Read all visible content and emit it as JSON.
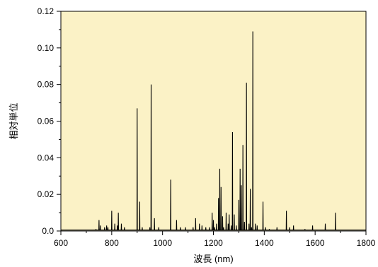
{
  "chart_data": {
    "type": "line",
    "title": "",
    "xlabel": "波長 (nm)",
    "ylabel": "相対単位",
    "xlim": [
      600,
      1800
    ],
    "ylim": [
      0,
      0.12
    ],
    "xticks": [
      "600",
      "800",
      "1000",
      "1200",
      "1400",
      "1600",
      "1800"
    ],
    "yticks": [
      "0.0",
      "0.02",
      "0.04",
      "0.06",
      "0.08",
      "0.10",
      "0.12"
    ],
    "grid": false,
    "legend": "none",
    "plot_background": "#fbf2c6",
    "line_color": "#000000",
    "baseline": 0.0005,
    "series": [
      {
        "peaks": [
          [
            738,
            0.001
          ],
          [
            750,
            0.006
          ],
          [
            755,
            0.003
          ],
          [
            772,
            0.002
          ],
          [
            780,
            0.003
          ],
          [
            785,
            0.002
          ],
          [
            800,
            0.011
          ],
          [
            812,
            0.004
          ],
          [
            822,
            0.003
          ],
          [
            826,
            0.01
          ],
          [
            838,
            0.004
          ],
          [
            850,
            0.002
          ],
          [
            900,
            0.067
          ],
          [
            910,
            0.016
          ],
          [
            920,
            0.002
          ],
          [
            950,
            0.002
          ],
          [
            955,
            0.08
          ],
          [
            968,
            0.007
          ],
          [
            985,
            0.002
          ],
          [
            1032,
            0.028
          ],
          [
            1055,
            0.006
          ],
          [
            1070,
            0.002
          ],
          [
            1090,
            0.002
          ],
          [
            1120,
            0.002
          ],
          [
            1130,
            0.007
          ],
          [
            1145,
            0.004
          ],
          [
            1155,
            0.003
          ],
          [
            1170,
            0.002
          ],
          [
            1185,
            0.002
          ],
          [
            1195,
            0.01
          ],
          [
            1200,
            0.006
          ],
          [
            1205,
            0.002
          ],
          [
            1212,
            0.004
          ],
          [
            1220,
            0.018
          ],
          [
            1225,
            0.034
          ],
          [
            1230,
            0.024
          ],
          [
            1236,
            0.008
          ],
          [
            1240,
            0.002
          ],
          [
            1250,
            0.01
          ],
          [
            1258,
            0.004
          ],
          [
            1262,
            0.009
          ],
          [
            1270,
            0.003
          ],
          [
            1275,
            0.054
          ],
          [
            1282,
            0.009
          ],
          [
            1290,
            0.003
          ],
          [
            1300,
            0.017
          ],
          [
            1305,
            0.034
          ],
          [
            1310,
            0.025
          ],
          [
            1316,
            0.047
          ],
          [
            1322,
            0.005
          ],
          [
            1330,
            0.081
          ],
          [
            1340,
            0.004
          ],
          [
            1345,
            0.023
          ],
          [
            1350,
            0.002
          ],
          [
            1355,
            0.109
          ],
          [
            1365,
            0.004
          ],
          [
            1372,
            0.003
          ],
          [
            1395,
            0.016
          ],
          [
            1405,
            0.002
          ],
          [
            1420,
            0.001
          ],
          [
            1450,
            0.002
          ],
          [
            1487,
            0.011
          ],
          [
            1500,
            0.002
          ],
          [
            1515,
            0.003
          ],
          [
            1560,
            0.001
          ],
          [
            1590,
            0.003
          ],
          [
            1640,
            0.004
          ],
          [
            1680,
            0.01
          ]
        ]
      }
    ]
  }
}
